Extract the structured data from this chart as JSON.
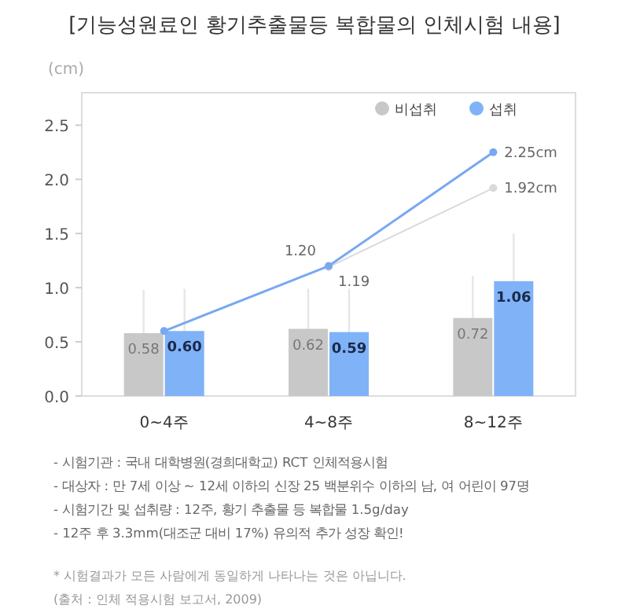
{
  "chart_data": {
    "type": "bar",
    "title": "[기능성원료인 황기추출물등 복합물의 인체시험 내용]",
    "ylabel": "(cm)",
    "categories": [
      "0~4주",
      "4~8주",
      "8~12주"
    ],
    "ylim": [
      0,
      2.8
    ],
    "yticks": [
      {
        "value": 0,
        "label": "0.0"
      },
      {
        "value": 0.5,
        "label": "0.5"
      },
      {
        "value": 1,
        "label": "1.0"
      },
      {
        "value": 1.5,
        "label": "1.5"
      },
      {
        "value": 2,
        "label": "2.0"
      },
      {
        "value": 2.5,
        "label": "2.5"
      }
    ],
    "grid": false,
    "legend": "top right",
    "series": [
      {
        "name": "비섭취",
        "color": "#c8c8c8",
        "values": [
          0.58,
          0.62,
          0.72
        ],
        "value_labels": [
          "0.58",
          "0.62",
          "0.72"
        ],
        "errors": [
          [
            0.58,
            0.98
          ],
          [
            0.62,
            0.99
          ],
          [
            0.72,
            1.11
          ]
        ]
      },
      {
        "name": "섭취",
        "color": "#80b2f7",
        "values": [
          0.6,
          0.59,
          1.06
        ],
        "value_labels": [
          "0.60",
          "0.59",
          "1.06"
        ],
        "errors": [
          [
            0.6,
            0.99
          ],
          [
            0.59,
            0.99
          ],
          [
            1.06,
            1.5
          ]
        ]
      },
      {
        "type": "line",
        "color": "#dadada",
        "values": [
          null,
          1.19,
          1.92
        ],
        "value_labels": [
          null,
          "1.19",
          "1.92cm"
        ]
      },
      {
        "type": "line",
        "color": "#78a8f2",
        "values": [
          0.6,
          1.2,
          2.25
        ],
        "value_labels": [
          null,
          "1.20",
          "2.25cm"
        ]
      }
    ],
    "marker": "circle",
    "annotations": [
      "- 시험기관 : 국내 대학병원(경희대학교) RCT 인체적용시험",
      "- 대상자 : 만 7세 이상 ~ 12세 이하의 신장 25 백분위수 이하의 남, 여 어린이 97명",
      "- 시험기간 및 섭취량 : 12주, 황기 추출물 등 복합물 1.5g/day",
      "- 12주 후 3.3mm(대조군 대비 17%) 유의적 추가 성장 확인!",
      "* 시험결과가 모든 사람에게 동일하게 나타나는 것은 아닙니다.",
      "(출처 : 인체 적용시험 보고서, 2009)"
    ]
  }
}
